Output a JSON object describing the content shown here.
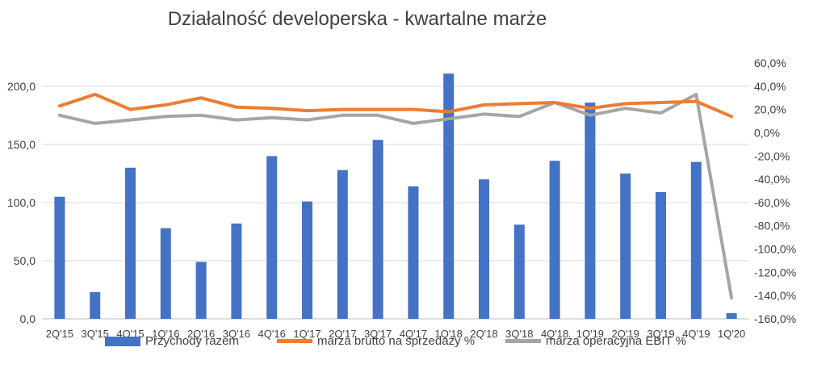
{
  "chart_data": {
    "type": "bar",
    "title": "Działalność developerska - kwartalne marże",
    "categories": [
      "2Q'15",
      "3Q'15",
      "4Q'15",
      "1Q'16",
      "2Q'16",
      "3Q'16",
      "4Q'16",
      "1Q'17",
      "2Q'17",
      "3Q'17",
      "4Q'17",
      "1Q'18",
      "2Q'18",
      "3Q'18",
      "4Q'18",
      "1Q'19",
      "2Q'19",
      "3Q'19",
      "4Q'19",
      "1Q'20"
    ],
    "y_left": {
      "ylim": [
        0,
        200
      ],
      "ticks": [
        "0,0",
        "50,0",
        "100,0",
        "150,0",
        "200,0"
      ],
      "tick_values": [
        0,
        50,
        100,
        150,
        200
      ]
    },
    "y_right": {
      "ylim": [
        -160,
        60
      ],
      "ticks": [
        "-160,0%",
        "-140,0%",
        "-120,0%",
        "-100,0%",
        "-80,0%",
        "-60,0%",
        "-40,0%",
        "-20,0%",
        "0,0%",
        "20,0%",
        "40,0%",
        "60,0%"
      ],
      "tick_values": [
        -160,
        -140,
        -120,
        -100,
        -80,
        -60,
        -40,
        -20,
        0,
        20,
        40,
        60
      ]
    },
    "grid": "horizontal",
    "legend_position": "bottom",
    "series": [
      {
        "name": "Przychody razem",
        "kind": "bar",
        "axis": "left",
        "color": "#4472C4",
        "values": [
          105,
          23,
          130,
          78,
          49,
          82,
          140,
          101,
          128,
          154,
          114,
          211,
          120,
          81,
          136,
          186,
          125,
          109,
          135,
          5
        ]
      },
      {
        "name": "marża brutto na sprzedaży %",
        "kind": "line",
        "axis": "right",
        "color": "#ED7D31",
        "values": [
          23,
          33,
          20,
          24,
          30,
          22,
          21,
          19,
          20,
          20,
          20,
          18,
          24,
          25,
          26,
          21,
          25,
          26,
          27,
          14
        ]
      },
      {
        "name": "marża operacyjna EBIT %",
        "kind": "line",
        "axis": "right",
        "color": "#A5A5A5",
        "values": [
          15,
          8,
          11,
          14,
          15,
          11,
          13,
          11,
          15,
          15,
          8,
          12,
          16,
          14,
          26,
          15,
          21,
          17,
          33,
          -142
        ]
      }
    ]
  }
}
